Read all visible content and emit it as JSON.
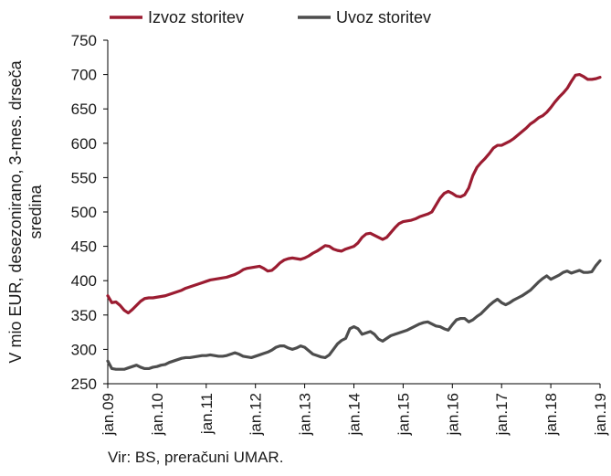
{
  "chart_data": {
    "type": "line",
    "title": "",
    "ylabel_lines": [
      "V mio EUR, desezonirano, 3-mes. drseča",
      "sredina"
    ],
    "xlabel": "",
    "ylim": [
      250,
      750
    ],
    "yticks": [
      250,
      300,
      350,
      400,
      450,
      500,
      550,
      600,
      650,
      700,
      750
    ],
    "xlim": [
      "2009-01",
      "2019-01"
    ],
    "xticks": [
      "jan.09",
      "jan.10",
      "jan.11",
      "jan.12",
      "jan.13",
      "jan.14",
      "jan.15",
      "jan.16",
      "jan.17",
      "jan.18",
      "jan.19"
    ],
    "grid": false,
    "legend_position": "top",
    "frequency": "monthly",
    "series": [
      {
        "name": "Izvoz storitev",
        "color": "#9b1c31",
        "values": [
          378,
          368,
          369,
          364,
          357,
          353,
          358,
          364,
          370,
          374,
          375,
          375,
          376,
          377,
          378,
          380,
          382,
          384,
          386,
          389,
          391,
          393,
          395,
          397,
          399,
          401,
          402,
          403,
          404,
          405,
          407,
          409,
          412,
          416,
          418,
          419,
          420,
          421,
          418,
          414,
          415,
          420,
          426,
          430,
          432,
          433,
          432,
          431,
          433,
          436,
          440,
          443,
          447,
          451,
          450,
          446,
          444,
          443,
          446,
          448,
          450,
          455,
          463,
          468,
          469,
          466,
          463,
          460,
          463,
          470,
          477,
          483,
          486,
          487,
          488,
          490,
          493,
          495,
          497,
          500,
          510,
          520,
          527,
          530,
          527,
          523,
          522,
          525,
          535,
          553,
          565,
          572,
          578,
          585,
          593,
          597,
          597,
          600,
          603,
          607,
          612,
          617,
          622,
          628,
          632,
          637,
          640,
          645,
          652,
          660,
          667,
          673,
          680,
          690,
          699,
          700,
          697,
          693,
          693,
          694,
          696
        ]
      },
      {
        "name": "Uvoz storitev",
        "color": "#4d4d4d",
        "values": [
          283,
          272,
          271,
          271,
          271,
          273,
          275,
          277,
          274,
          272,
          272,
          274,
          275,
          277,
          278,
          281,
          283,
          285,
          287,
          288,
          288,
          289,
          290,
          291,
          291,
          292,
          291,
          290,
          290,
          291,
          293,
          295,
          293,
          290,
          289,
          288,
          290,
          292,
          294,
          296,
          299,
          303,
          305,
          305,
          302,
          300,
          302,
          305,
          303,
          298,
          293,
          291,
          289,
          288,
          292,
          300,
          308,
          313,
          316,
          330,
          333,
          330,
          322,
          324,
          326,
          322,
          315,
          312,
          316,
          320,
          322,
          324,
          326,
          328,
          331,
          334,
          337,
          339,
          340,
          337,
          334,
          333,
          330,
          328,
          336,
          343,
          345,
          345,
          340,
          343,
          348,
          352,
          358,
          364,
          369,
          373,
          368,
          365,
          368,
          372,
          375,
          378,
          382,
          386,
          392,
          398,
          403,
          407,
          402,
          405,
          408,
          412,
          414,
          411,
          413,
          415,
          412,
          412,
          413,
          422,
          429
        ]
      }
    ]
  },
  "source": "Vir: BS, preračuni UMAR."
}
